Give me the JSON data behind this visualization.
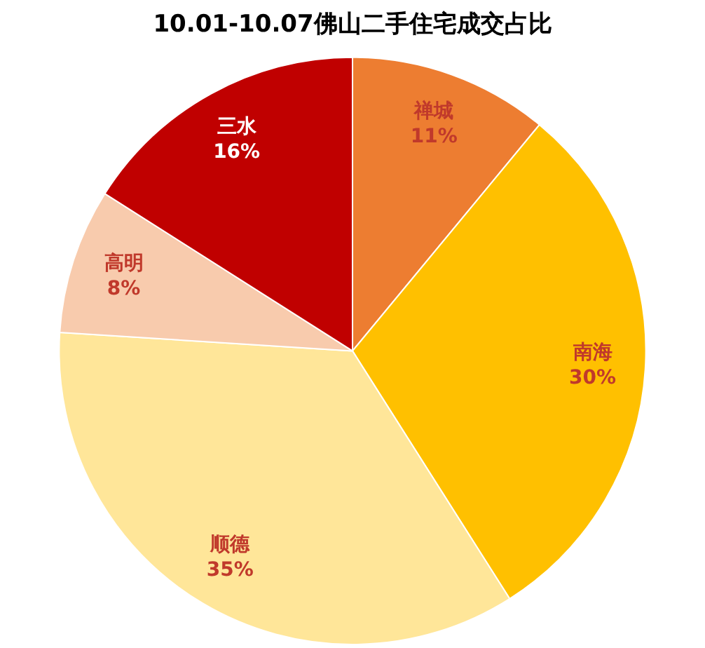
{
  "chart_data": {
    "type": "pie",
    "title": "10.01-10.07佛山二手住宅成交占比",
    "categories": [
      "禅城",
      "南海",
      "顺德",
      "高明",
      "三水"
    ],
    "values": [
      11,
      30,
      35,
      8,
      16
    ],
    "value_labels": [
      "11%",
      "30%",
      "35%",
      "8%",
      "16%"
    ],
    "colors": [
      "#ed7d31",
      "#ffc000",
      "#ffe699",
      "#f8cbad",
      "#c00000"
    ],
    "legend": false
  }
}
